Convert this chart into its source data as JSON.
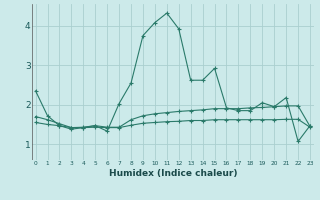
{
  "xlabel": "Humidex (Indice chaleur)",
  "background_color": "#cceaea",
  "grid_color": "#aacfcf",
  "line_color": "#2a7a6a",
  "x": [
    0,
    1,
    2,
    3,
    4,
    5,
    6,
    7,
    8,
    9,
    10,
    11,
    12,
    13,
    14,
    15,
    16,
    17,
    18,
    19,
    20,
    21,
    22,
    23
  ],
  "series1": [
    2.35,
    1.72,
    1.47,
    1.38,
    1.42,
    1.47,
    1.33,
    2.03,
    2.55,
    3.75,
    4.08,
    4.32,
    3.92,
    2.62,
    2.62,
    2.92,
    1.92,
    1.85,
    1.85,
    2.05,
    1.95,
    2.18,
    1.07,
    1.47
  ],
  "series2": [
    1.7,
    1.62,
    1.52,
    1.42,
    1.43,
    1.47,
    1.43,
    1.43,
    1.62,
    1.72,
    1.77,
    1.8,
    1.83,
    1.85,
    1.87,
    1.9,
    1.9,
    1.9,
    1.92,
    1.93,
    1.95,
    1.97,
    1.97,
    1.45
  ],
  "series3": [
    1.55,
    1.5,
    1.47,
    1.42,
    1.42,
    1.43,
    1.42,
    1.42,
    1.48,
    1.53,
    1.55,
    1.57,
    1.58,
    1.6,
    1.6,
    1.62,
    1.62,
    1.62,
    1.62,
    1.62,
    1.62,
    1.63,
    1.63,
    1.43
  ],
  "ylim": [
    0.6,
    4.55
  ],
  "yticks": [
    1,
    2,
    3,
    4
  ],
  "xlim": [
    -0.3,
    23.3
  ]
}
